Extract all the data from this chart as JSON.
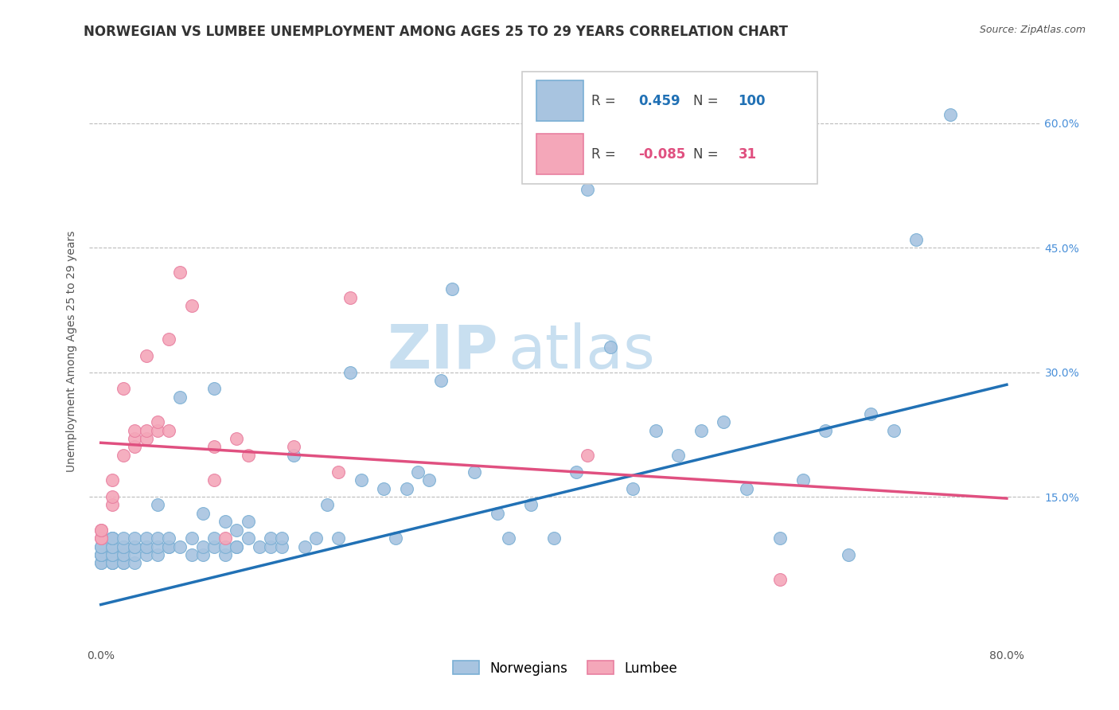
{
  "title": "NORWEGIAN VS LUMBEE UNEMPLOYMENT AMONG AGES 25 TO 29 YEARS CORRELATION CHART",
  "source": "Source: ZipAtlas.com",
  "ylabel": "Unemployment Among Ages 25 to 29 years",
  "xlim": [
    -0.01,
    0.83
  ],
  "ylim": [
    -0.03,
    0.68
  ],
  "x_ticks": [
    0.0,
    0.8
  ],
  "x_tick_labels": [
    "0.0%",
    "80.0%"
  ],
  "y_ticks": [
    0.15,
    0.3,
    0.45,
    0.6
  ],
  "y_tick_labels_right": [
    "15.0%",
    "30.0%",
    "45.0%",
    "60.0%"
  ],
  "norwegian_color": "#a8c4e0",
  "lumbee_color": "#f4a7b9",
  "norwegian_edge_color": "#7aafd4",
  "lumbee_edge_color": "#e87fa0",
  "norwegian_line_color": "#2171b5",
  "lumbee_line_color": "#e05080",
  "watermark_zip": "ZIP",
  "watermark_atlas": "atlas",
  "legend_R_norwegian": "0.459",
  "legend_N_norwegian": "100",
  "legend_R_lumbee": "-0.085",
  "legend_N_lumbee": "31",
  "norwegian_points_x": [
    0.0,
    0.0,
    0.0,
    0.0,
    0.0,
    0.0,
    0.0,
    0.0,
    0.01,
    0.01,
    0.01,
    0.01,
    0.01,
    0.01,
    0.01,
    0.01,
    0.01,
    0.01,
    0.02,
    0.02,
    0.02,
    0.02,
    0.02,
    0.02,
    0.02,
    0.03,
    0.03,
    0.03,
    0.03,
    0.03,
    0.04,
    0.04,
    0.04,
    0.04,
    0.05,
    0.05,
    0.05,
    0.05,
    0.06,
    0.06,
    0.06,
    0.07,
    0.07,
    0.08,
    0.08,
    0.09,
    0.09,
    0.09,
    0.1,
    0.1,
    0.1,
    0.11,
    0.11,
    0.11,
    0.12,
    0.12,
    0.12,
    0.13,
    0.13,
    0.14,
    0.15,
    0.15,
    0.16,
    0.16,
    0.17,
    0.18,
    0.19,
    0.2,
    0.21,
    0.22,
    0.23,
    0.25,
    0.26,
    0.27,
    0.28,
    0.29,
    0.3,
    0.31,
    0.33,
    0.35,
    0.36,
    0.38,
    0.4,
    0.42,
    0.43,
    0.45,
    0.47,
    0.49,
    0.51,
    0.53,
    0.55,
    0.57,
    0.6,
    0.62,
    0.64,
    0.66,
    0.68,
    0.7,
    0.72,
    0.75
  ],
  "norwegian_points_y": [
    0.07,
    0.07,
    0.08,
    0.08,
    0.08,
    0.08,
    0.09,
    0.09,
    0.07,
    0.07,
    0.07,
    0.08,
    0.08,
    0.09,
    0.09,
    0.1,
    0.1,
    0.1,
    0.07,
    0.07,
    0.08,
    0.08,
    0.09,
    0.09,
    0.1,
    0.07,
    0.08,
    0.09,
    0.09,
    0.1,
    0.08,
    0.09,
    0.09,
    0.1,
    0.08,
    0.09,
    0.1,
    0.14,
    0.09,
    0.09,
    0.1,
    0.09,
    0.27,
    0.08,
    0.1,
    0.08,
    0.09,
    0.13,
    0.09,
    0.1,
    0.28,
    0.08,
    0.09,
    0.12,
    0.09,
    0.09,
    0.11,
    0.1,
    0.12,
    0.09,
    0.09,
    0.1,
    0.09,
    0.1,
    0.2,
    0.09,
    0.1,
    0.14,
    0.1,
    0.3,
    0.17,
    0.16,
    0.1,
    0.16,
    0.18,
    0.17,
    0.29,
    0.4,
    0.18,
    0.13,
    0.1,
    0.14,
    0.1,
    0.18,
    0.52,
    0.33,
    0.16,
    0.23,
    0.2,
    0.23,
    0.24,
    0.16,
    0.1,
    0.17,
    0.23,
    0.08,
    0.25,
    0.23,
    0.46,
    0.61
  ],
  "lumbee_points_x": [
    0.0,
    0.0,
    0.0,
    0.0,
    0.01,
    0.01,
    0.01,
    0.02,
    0.02,
    0.03,
    0.03,
    0.03,
    0.04,
    0.04,
    0.04,
    0.05,
    0.05,
    0.06,
    0.06,
    0.07,
    0.08,
    0.1,
    0.1,
    0.11,
    0.12,
    0.13,
    0.17,
    0.21,
    0.22,
    0.43,
    0.6
  ],
  "lumbee_points_y": [
    0.1,
    0.1,
    0.11,
    0.11,
    0.14,
    0.15,
    0.17,
    0.2,
    0.28,
    0.21,
    0.22,
    0.23,
    0.22,
    0.23,
    0.32,
    0.23,
    0.24,
    0.23,
    0.34,
    0.42,
    0.38,
    0.17,
    0.21,
    0.1,
    0.22,
    0.2,
    0.21,
    0.18,
    0.39,
    0.2,
    0.05
  ],
  "norwegian_trend_x": [
    0.0,
    0.8
  ],
  "norwegian_trend_y": [
    0.02,
    0.285
  ],
  "lumbee_trend_x": [
    0.0,
    0.8
  ],
  "lumbee_trend_y": [
    0.215,
    0.148
  ],
  "background_color": "#ffffff",
  "grid_color": "#bbbbbb",
  "title_fontsize": 12,
  "axis_label_fontsize": 10,
  "tick_fontsize": 10,
  "legend_fontsize": 12,
  "watermark_fontsize_zip": 55,
  "watermark_fontsize_atlas": 55,
  "watermark_color": "#c8dff0",
  "right_tick_color": "#4a90d9"
}
